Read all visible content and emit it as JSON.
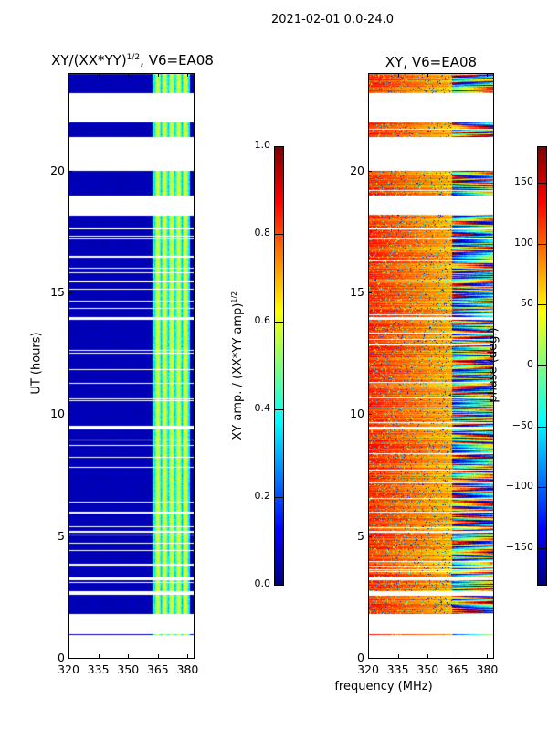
{
  "suptitle": "2021-02-01 0.0-24.0",
  "shared_xlabel": "frequency (MHz)",
  "chart_data": [
    {
      "type": "heatmap",
      "title": "XY/(XX*YY)^(1/2), V6=EA08",
      "title_main": "XY/(XX*YY)",
      "title_sup": "1/2",
      "title_tail": ", V6=EA08",
      "xlabel": "frequency (MHz)",
      "ylabel": "UT (hours)",
      "xlim": [
        320,
        383
      ],
      "ylim": [
        0,
        24
      ],
      "xticks": [
        320,
        335,
        350,
        365,
        380
      ],
      "yticks": [
        0,
        5,
        10,
        15,
        20
      ],
      "colormap": "jet",
      "colorbar": {
        "label_main": "XY amp. / (XX*YY amp)",
        "label_sup": "1/2",
        "range": [
          0,
          1
        ],
        "ticks": [
          "0.0",
          "0.2",
          "0.4",
          "0.6",
          "0.8",
          "1.0"
        ]
      },
      "data_intervals_hours": [
        [
          0.95,
          1.0
        ],
        [
          1.8,
          2.6
        ],
        [
          2.75,
          3.2
        ],
        [
          3.3,
          9.4
        ],
        [
          9.5,
          13.9
        ],
        [
          14.0,
          17.6
        ],
        [
          17.7,
          18.2
        ],
        [
          19.0,
          20.0
        ],
        [
          21.4,
          22.0
        ],
        [
          23.2,
          24.0
        ]
      ],
      "typical_value_low_band": 0.05,
      "typical_value_high_band": 0.45,
      "high_band_mhz": [
        362,
        381
      ]
    },
    {
      "type": "heatmap",
      "title": "XY, V6=EA08",
      "xlabel": "frequency (MHz)",
      "ylabel": "",
      "xlim": [
        320,
        383
      ],
      "ylim": [
        0,
        24
      ],
      "xticks": [
        320,
        335,
        350,
        365,
        380
      ],
      "yticks": [
        0,
        5,
        10,
        15,
        20
      ],
      "colormap": "jet",
      "colorbar": {
        "label": "phase (deg.)",
        "range": [
          -180,
          180
        ],
        "ticks": [
          "−150",
          "−100",
          "−50",
          "0",
          "50",
          "100",
          "150"
        ],
        "tick_values": [
          -150,
          -100,
          -50,
          0,
          50,
          100,
          150
        ]
      },
      "data_intervals_hours": [
        [
          0.95,
          1.0
        ],
        [
          1.8,
          2.6
        ],
        [
          2.75,
          3.2
        ],
        [
          3.3,
          9.4
        ],
        [
          9.5,
          13.9
        ],
        [
          14.0,
          17.6
        ],
        [
          17.7,
          18.2
        ],
        [
          19.0,
          20.0
        ],
        [
          21.4,
          22.0
        ],
        [
          23.2,
          24.0
        ]
      ],
      "typical_phase_low_band_deg": 120,
      "high_band_mhz": [
        362,
        381
      ]
    }
  ]
}
